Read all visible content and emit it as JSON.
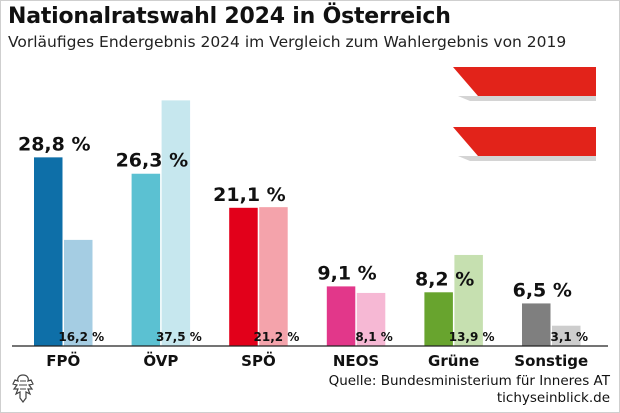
{
  "title": "Nationalratswahl 2024 in Österreich",
  "subtitle": "Vorläufiges Endergebnis 2024 im Vergleich zum Wahlergebnis von 2019",
  "source_line1": "Quelle: Bundesministerium für Inneres AT",
  "source_line2": "tichyseinblick.de",
  "logo_icon": "eagle-emblem-icon",
  "flag_icon": "austria-flag-icon",
  "flag_colors": {
    "red": "#e2231a",
    "shadow": "#d4d4d4"
  },
  "chart_data": {
    "type": "bar",
    "categories": [
      "FPÖ",
      "ÖVP",
      "SPÖ",
      "NEOS",
      "Grüne",
      "Sonstige"
    ],
    "series": [
      {
        "values": [
          28.8,
          26.3,
          21.1,
          9.1,
          8.2,
          6.5
        ],
        "labels": [
          "28,8 %",
          "26,3 %",
          "21,1 %",
          "9,1 %",
          "8,2 %",
          "6,5 %"
        ]
      },
      {
        "values": [
          16.2,
          37.5,
          21.2,
          8.1,
          13.9,
          3.1
        ],
        "labels": [
          "16,2 %",
          "37,5 %",
          "21,2 %",
          "8,1 %",
          "13,9 %",
          "3,1 %"
        ]
      }
    ],
    "colors_2024": [
      "#0e6fa8",
      "#5bc1d2",
      "#e2001a",
      "#e2378a",
      "#68a42e",
      "#7f7f7f"
    ],
    "colors_2019": [
      "#a5cde3",
      "#c6e7ee",
      "#f4a3ab",
      "#f6b8d4",
      "#c6e0b0",
      "#cdcdcd"
    ],
    "ylim": [
      0,
      40
    ],
    "grid": false,
    "legend": "none"
  }
}
